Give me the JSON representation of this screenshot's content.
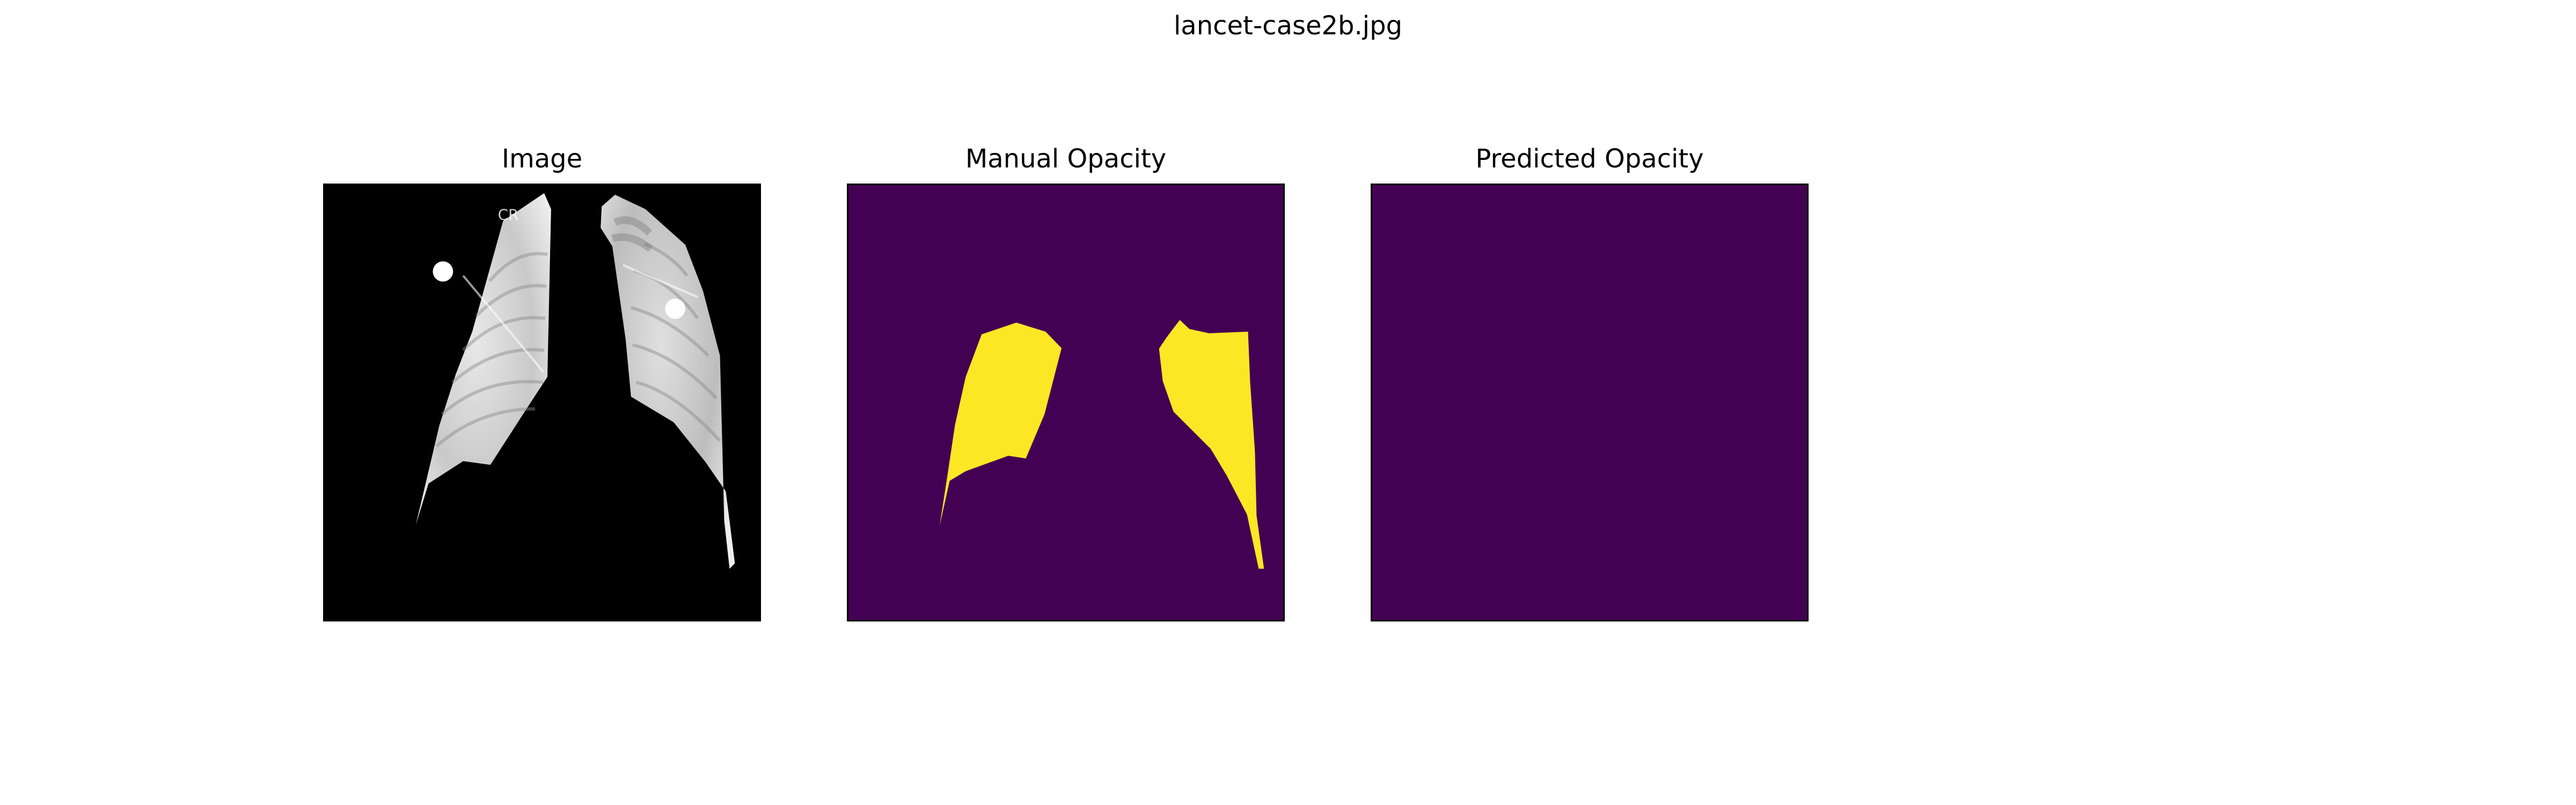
{
  "figure": {
    "suptitle": "lancet-case2b.jpg",
    "panels": [
      {
        "title": "Image"
      },
      {
        "title": "Manual Opacity"
      },
      {
        "title": "Predicted Opacity"
      }
    ],
    "xray_marker_text": "CR",
    "colors": {
      "background": "#000000",
      "mask_background": "#440154",
      "mask_opacity": "#fde725"
    }
  }
}
